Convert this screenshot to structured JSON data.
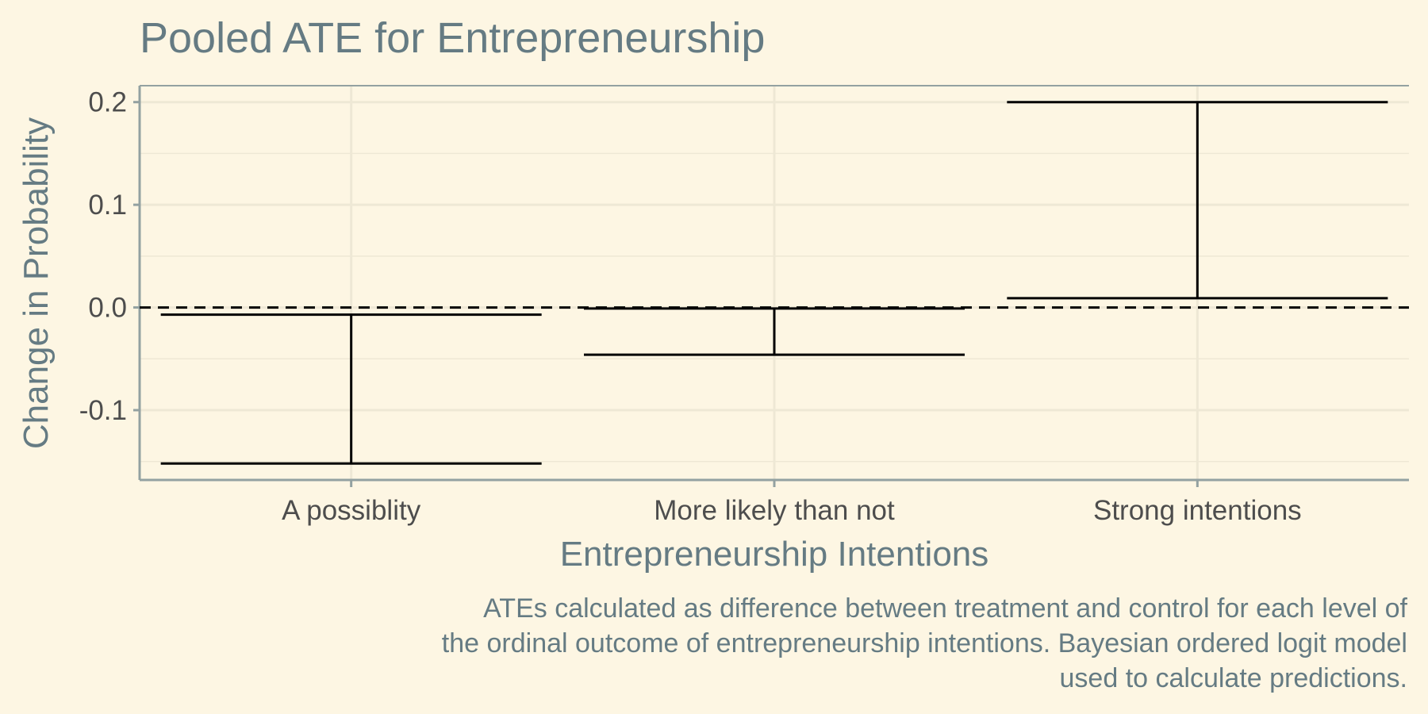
{
  "chart_data": {
    "type": "errorbar",
    "title": "Pooled ATE for Entrepreneurship",
    "xlabel": "Entrepreneurship Intentions",
    "ylabel": "Change in Probability",
    "categories": [
      "A possiblity",
      "More likely than not",
      "Strong intentions"
    ],
    "series": [
      {
        "lower": [
          -0.152,
          -0.046,
          0.009
        ],
        "upper": [
          -0.007,
          -0.001,
          0.2
        ]
      }
    ],
    "yticks": [
      -0.1,
      0.0,
      0.1,
      0.2
    ],
    "ytick_labels": [
      "-0.1",
      "0.0",
      "0.1",
      "0.2"
    ],
    "ylim": [
      -0.168,
      0.216
    ],
    "reference_line": {
      "y": 0.0,
      "style": "dashed"
    },
    "grid": true,
    "caption": [
      "ATEs calculated as difference between treatment and control for each level of",
      "the ordinal outcome of entrepreneurship intentions. Bayesian ordered logit model",
      "used to calculate predictions."
    ],
    "colors": {
      "background": "#fdf6e3",
      "grid": "#eee8d5",
      "axis": "#93a1a1",
      "text": "#657b83",
      "tick": "#4d4d4d",
      "marks": "#000000"
    }
  }
}
